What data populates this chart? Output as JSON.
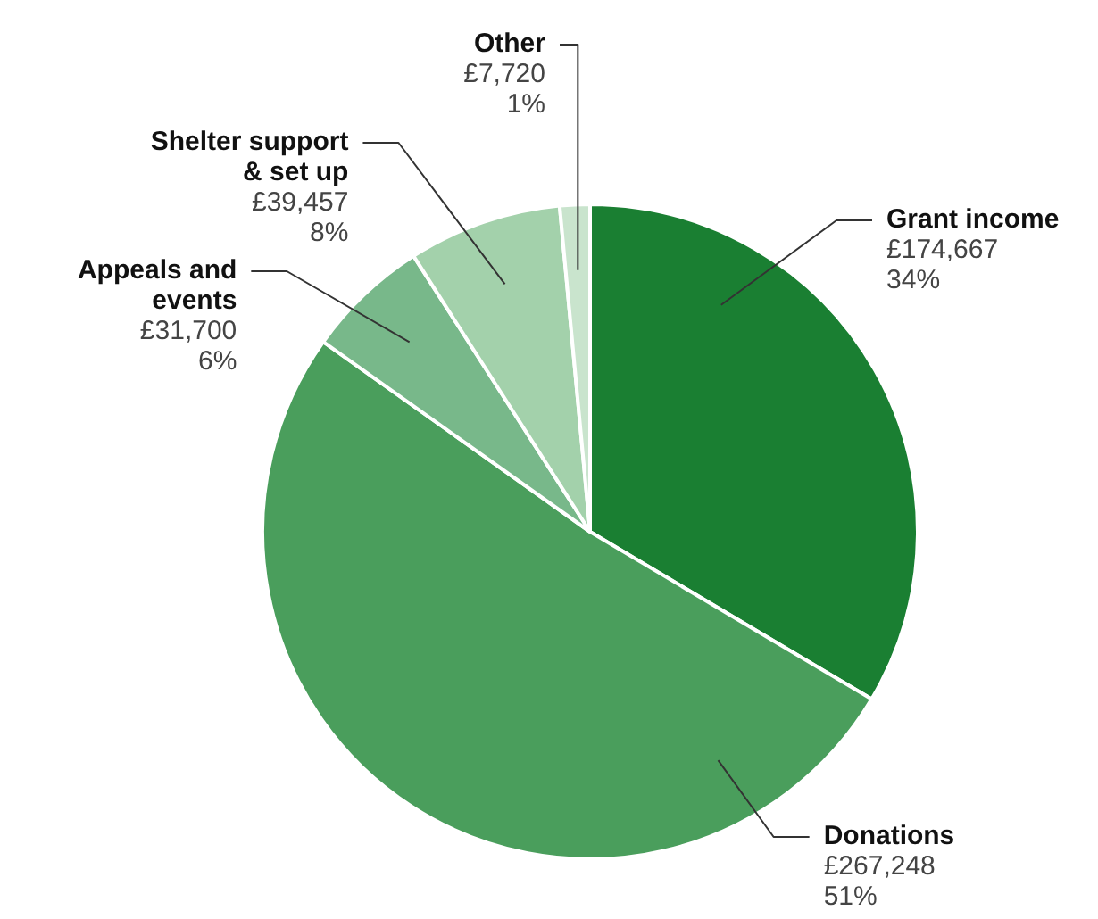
{
  "chart_data": {
    "type": "pie",
    "categories": [
      "Grant income",
      "Donations",
      "Appeals and events",
      "Shelter support & set up",
      "Other"
    ],
    "values": [
      174667,
      267248,
      31700,
      39457,
      7720
    ],
    "colors": [
      "#1a7f32",
      "#4a9e5c",
      "#78b88a",
      "#a3d1ab",
      "#c9e4cd"
    ],
    "value_labels": [
      "£174,667\n34%",
      "£267,248\n51%",
      "£31,700\n6%",
      "£39,457\n8%",
      "£7,720\n1%"
    ],
    "legend": false
  }
}
